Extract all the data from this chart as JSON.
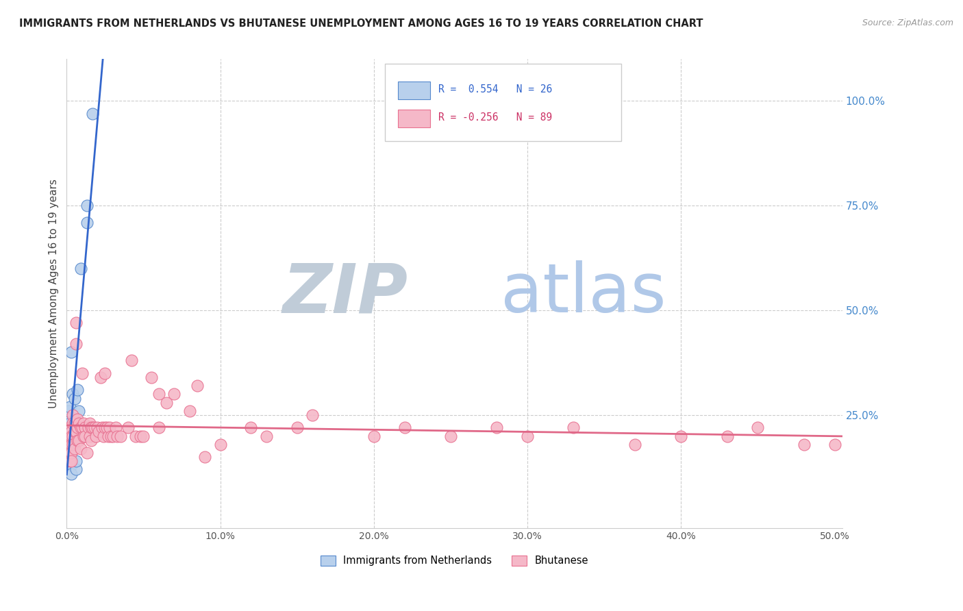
{
  "title": "IMMIGRANTS FROM NETHERLANDS VS BHUTANESE UNEMPLOYMENT AMONG AGES 16 TO 19 YEARS CORRELATION CHART",
  "source": "Source: ZipAtlas.com",
  "ylabel": "Unemployment Among Ages 16 to 19 years",
  "legend_blue_label": "Immigrants from Netherlands",
  "legend_pink_label": "Bhutanese",
  "blue_r_text": "R =  0.554",
  "blue_n_text": "N = 26",
  "pink_r_text": "R = -0.256",
  "pink_n_text": "N = 89",
  "blue_fill_color": "#b8d0ec",
  "pink_fill_color": "#f5b8c8",
  "blue_edge_color": "#5588cc",
  "pink_edge_color": "#e87090",
  "blue_line_color": "#3366cc",
  "pink_line_color": "#e06888",
  "watermark_zip_color": "#c8d8e8",
  "watermark_atlas_color": "#b8d0f0",
  "blue_scatter_x": [
    0.0005,
    0.0005,
    0.001,
    0.001,
    0.001,
    0.001,
    0.002,
    0.002,
    0.002,
    0.002,
    0.003,
    0.003,
    0.003,
    0.003,
    0.004,
    0.004,
    0.005,
    0.005,
    0.006,
    0.006,
    0.007,
    0.008,
    0.009,
    0.013,
    0.013,
    0.017
  ],
  "blue_scatter_y": [
    0.2,
    0.22,
    0.2,
    0.22,
    0.24,
    0.26,
    0.19,
    0.21,
    0.23,
    0.27,
    0.2,
    0.13,
    0.11,
    0.4,
    0.22,
    0.3,
    0.29,
    0.2,
    0.12,
    0.14,
    0.31,
    0.26,
    0.6,
    0.71,
    0.75,
    0.97
  ],
  "pink_scatter_x": [
    0.001,
    0.001,
    0.001,
    0.002,
    0.002,
    0.002,
    0.002,
    0.003,
    0.003,
    0.003,
    0.003,
    0.003,
    0.004,
    0.004,
    0.004,
    0.004,
    0.005,
    0.005,
    0.005,
    0.006,
    0.006,
    0.006,
    0.007,
    0.007,
    0.007,
    0.008,
    0.008,
    0.009,
    0.009,
    0.01,
    0.01,
    0.011,
    0.011,
    0.012,
    0.012,
    0.013,
    0.014,
    0.015,
    0.015,
    0.016,
    0.016,
    0.017,
    0.018,
    0.019,
    0.02,
    0.021,
    0.022,
    0.023,
    0.024,
    0.025,
    0.025,
    0.026,
    0.027,
    0.028,
    0.029,
    0.03,
    0.032,
    0.033,
    0.035,
    0.04,
    0.042,
    0.045,
    0.048,
    0.05,
    0.055,
    0.06,
    0.06,
    0.065,
    0.07,
    0.08,
    0.085,
    0.09,
    0.1,
    0.12,
    0.13,
    0.15,
    0.16,
    0.2,
    0.22,
    0.25,
    0.28,
    0.3,
    0.33,
    0.37,
    0.4,
    0.43,
    0.45,
    0.48,
    0.5
  ],
  "pink_scatter_y": [
    0.18,
    0.15,
    0.2,
    0.22,
    0.16,
    0.2,
    0.14,
    0.21,
    0.2,
    0.18,
    0.16,
    0.14,
    0.25,
    0.23,
    0.2,
    0.18,
    0.23,
    0.21,
    0.17,
    0.47,
    0.42,
    0.21,
    0.24,
    0.22,
    0.19,
    0.23,
    0.19,
    0.22,
    0.17,
    0.35,
    0.22,
    0.23,
    0.2,
    0.22,
    0.2,
    0.16,
    0.22,
    0.2,
    0.23,
    0.22,
    0.19,
    0.22,
    0.22,
    0.2,
    0.22,
    0.21,
    0.34,
    0.22,
    0.2,
    0.22,
    0.35,
    0.22,
    0.2,
    0.22,
    0.2,
    0.2,
    0.22,
    0.2,
    0.2,
    0.22,
    0.38,
    0.2,
    0.2,
    0.2,
    0.34,
    0.3,
    0.22,
    0.28,
    0.3,
    0.26,
    0.32,
    0.15,
    0.18,
    0.22,
    0.2,
    0.22,
    0.25,
    0.2,
    0.22,
    0.2,
    0.22,
    0.2,
    0.22,
    0.18,
    0.2,
    0.2,
    0.22,
    0.18,
    0.18
  ],
  "xlim": [
    0.0,
    0.505
  ],
  "ylim": [
    -0.02,
    1.1
  ],
  "xticks": [
    0.0,
    0.1,
    0.2,
    0.3,
    0.4,
    0.5
  ],
  "yticks_right": [
    0.0,
    0.25,
    0.5,
    0.75,
    1.0
  ],
  "ytick_labels_right": [
    "",
    "25.0%",
    "50.0%",
    "75.0%",
    "100.0%"
  ]
}
